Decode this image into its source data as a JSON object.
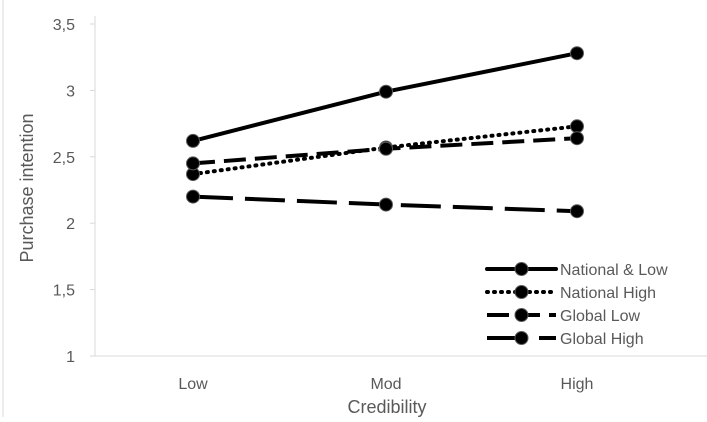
{
  "chart_data": {
    "type": "line",
    "categories": [
      "Low",
      "Mod",
      "High"
    ],
    "xlabel": "Credibility",
    "ylabel": "Purchase intention",
    "ylim": [
      1,
      3.5
    ],
    "yticks": [
      "1",
      "1,5",
      "2",
      "2,5",
      "3",
      "3,5"
    ],
    "grid": false,
    "legend_position": "bottom-right",
    "series": [
      {
        "name": "National & Low",
        "values": [
          2.62,
          2.99,
          3.28
        ],
        "line_style": "solid",
        "color": "#000000"
      },
      {
        "name": "National High",
        "values": [
          2.37,
          2.57,
          2.73
        ],
        "line_style": "dotted",
        "color": "#000000"
      },
      {
        "name": "Global Low",
        "values": [
          2.45,
          2.56,
          2.64
        ],
        "line_style": "dashed",
        "color": "#000000"
      },
      {
        "name": "Global High",
        "values": [
          2.2,
          2.14,
          2.09
        ],
        "line_style": "long-dash",
        "color": "#000000"
      }
    ]
  }
}
